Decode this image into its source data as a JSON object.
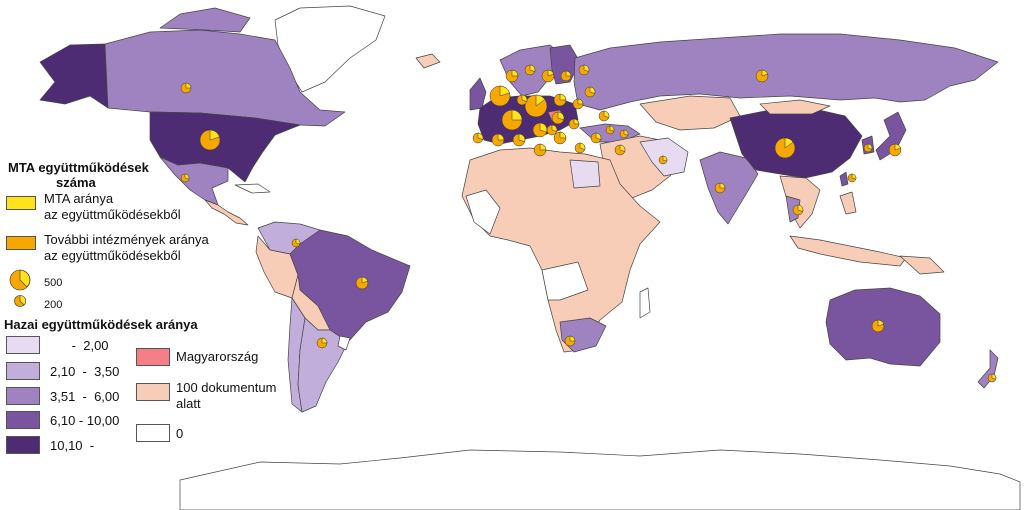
{
  "legend": {
    "title_line1": "MTA együttműködések",
    "title_line2": "száma",
    "mta_share_line1": "MTA aránya",
    "mta_share_line2": "az együttműködésekből",
    "other_share_line1": "További intézmények aránya",
    "other_share_line2": "az együttműködésekből",
    "size_large": "500",
    "size_small": "200",
    "domestic_title": "Hazai együttműködések aránya",
    "classes": [
      {
        "label": "      -  2,00",
        "color": "#e6dbf1"
      },
      {
        "label": "2,10  -  3,50",
        "color": "#c2aedb"
      },
      {
        "label": "3,51  -  6,00",
        "color": "#9f82c0"
      },
      {
        "label": "6,10 - 10,00",
        "color": "#7a559f"
      },
      {
        "label": "10,10  -",
        "color": "#4e2c74"
      }
    ],
    "hungary": "Magyarország",
    "under100_line1": "100 dokumentum",
    "under100_line2": "alatt",
    "zero": "0"
  },
  "colors": {
    "mta": "#ffe21a",
    "other": "#f7a800",
    "hungary": "#f47f86",
    "under100": "#f8cdb7",
    "none": "#ffffff",
    "border": "#444444"
  }
}
